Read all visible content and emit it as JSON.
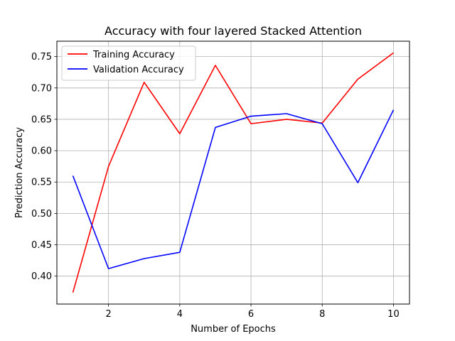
{
  "chart_data": {
    "type": "line",
    "title": "Accuracy with four layered Stacked Attention",
    "xlabel": "Number of Epochs",
    "ylabel": "Prediction Accuracy",
    "x": [
      1,
      2,
      3,
      4,
      5,
      6,
      7,
      8,
      9,
      10
    ],
    "xlim": [
      0.55,
      10.45
    ],
    "ylim": [
      0.3555,
      0.7745
    ],
    "xticks": [
      2,
      4,
      6,
      8,
      10
    ],
    "xtick_labels": [
      "2",
      "4",
      "6",
      "8",
      "10"
    ],
    "yticks": [
      0.4,
      0.45,
      0.5,
      0.55,
      0.6,
      0.65,
      0.7,
      0.75
    ],
    "ytick_labels": [
      "0.40",
      "0.45",
      "0.50",
      "0.55",
      "0.60",
      "0.65",
      "0.70",
      "0.75"
    ],
    "grid": true,
    "legend_position": "top-left",
    "series": [
      {
        "name": "Training Accuracy",
        "color": "#ff0000",
        "values": [
          0.374,
          0.575,
          0.709,
          0.627,
          0.736,
          0.643,
          0.65,
          0.644,
          0.714,
          0.756
        ]
      },
      {
        "name": "Validation Accuracy",
        "color": "#0000ff",
        "values": [
          0.56,
          0.412,
          0.428,
          0.438,
          0.637,
          0.655,
          0.659,
          0.643,
          0.549,
          0.665
        ]
      }
    ]
  }
}
